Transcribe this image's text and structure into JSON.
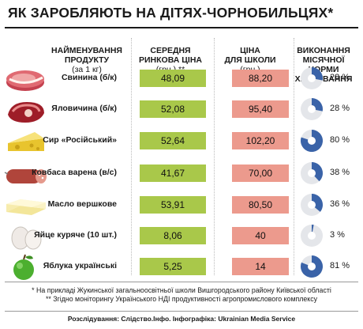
{
  "title": "ЯК ЗАРОБЛЯЮТЬ НА ДІТЯХ-ЧОРНОБИЛЬЦЯХ*",
  "headers": {
    "product": "НАЙМЕНУВАННЯ\nПРОДУКТУ",
    "product_unit": "(за 1 кг)",
    "market": "СЕРЕДНЯ\nРИНКОВА ЦІНА",
    "market_unit": "(грн.) **",
    "school": "ЦІНА\nДЛЯ ШКОЛИ",
    "school_unit": "(грн.)",
    "norm": "ВИКОНАННЯ\nМІСЯЧНОЇ НОРМИ\nХАРЧУВАННЯ"
  },
  "colors": {
    "green": "#a9c84a",
    "pink": "#ec9a8d",
    "pie_blue": "#3a63a8",
    "pie_bg": "#e4e6ea"
  },
  "products": [
    {
      "name": "Свинина  (б/к)",
      "market_price": "48,09",
      "school_price": "88,20",
      "norm_pct": 28,
      "norm_label": "28 %",
      "icon": "pork-meat-icon"
    },
    {
      "name": "Яловичина  (б/к)",
      "market_price": "52,08",
      "school_price": "95,40",
      "norm_pct": 28,
      "norm_label": "28 %",
      "icon": "beef-meat-icon"
    },
    {
      "name": "Сир «Російський»",
      "market_price": "52,64",
      "school_price": "102,20",
      "norm_pct": 80,
      "norm_label": "80 %",
      "icon": "cheese-icon"
    },
    {
      "name": "Ковбаса варена (в/с)",
      "market_price": "41,67",
      "school_price": "70,00",
      "norm_pct": 38,
      "norm_label": "38 %",
      "icon": "sausage-icon"
    },
    {
      "name": "Масло вершкове",
      "market_price": "53,91",
      "school_price": "80,50",
      "norm_pct": 36,
      "norm_label": "36 %",
      "icon": "butter-icon"
    },
    {
      "name": "Яйце куряче (10 шт.)",
      "market_price": "8,06",
      "school_price": "40",
      "norm_pct": 3,
      "norm_label": "3 %",
      "icon": "eggs-icon"
    },
    {
      "name": "Яблука українські",
      "market_price": "5,25",
      "school_price": "14",
      "norm_pct": 81,
      "norm_label": "81 %",
      "icon": "apple-icon"
    }
  ],
  "notes": {
    "note1": "* На прикладі Жукинської загальноосвітньої школи Вишгородського району Київської області",
    "note2": "** Згідно моніторингу Українського НДІ продуктивності агропромислового комплексу"
  },
  "credit": "Розслідування: Слідство.Інфо. Інфографіка: Ukrainian Media Service"
}
